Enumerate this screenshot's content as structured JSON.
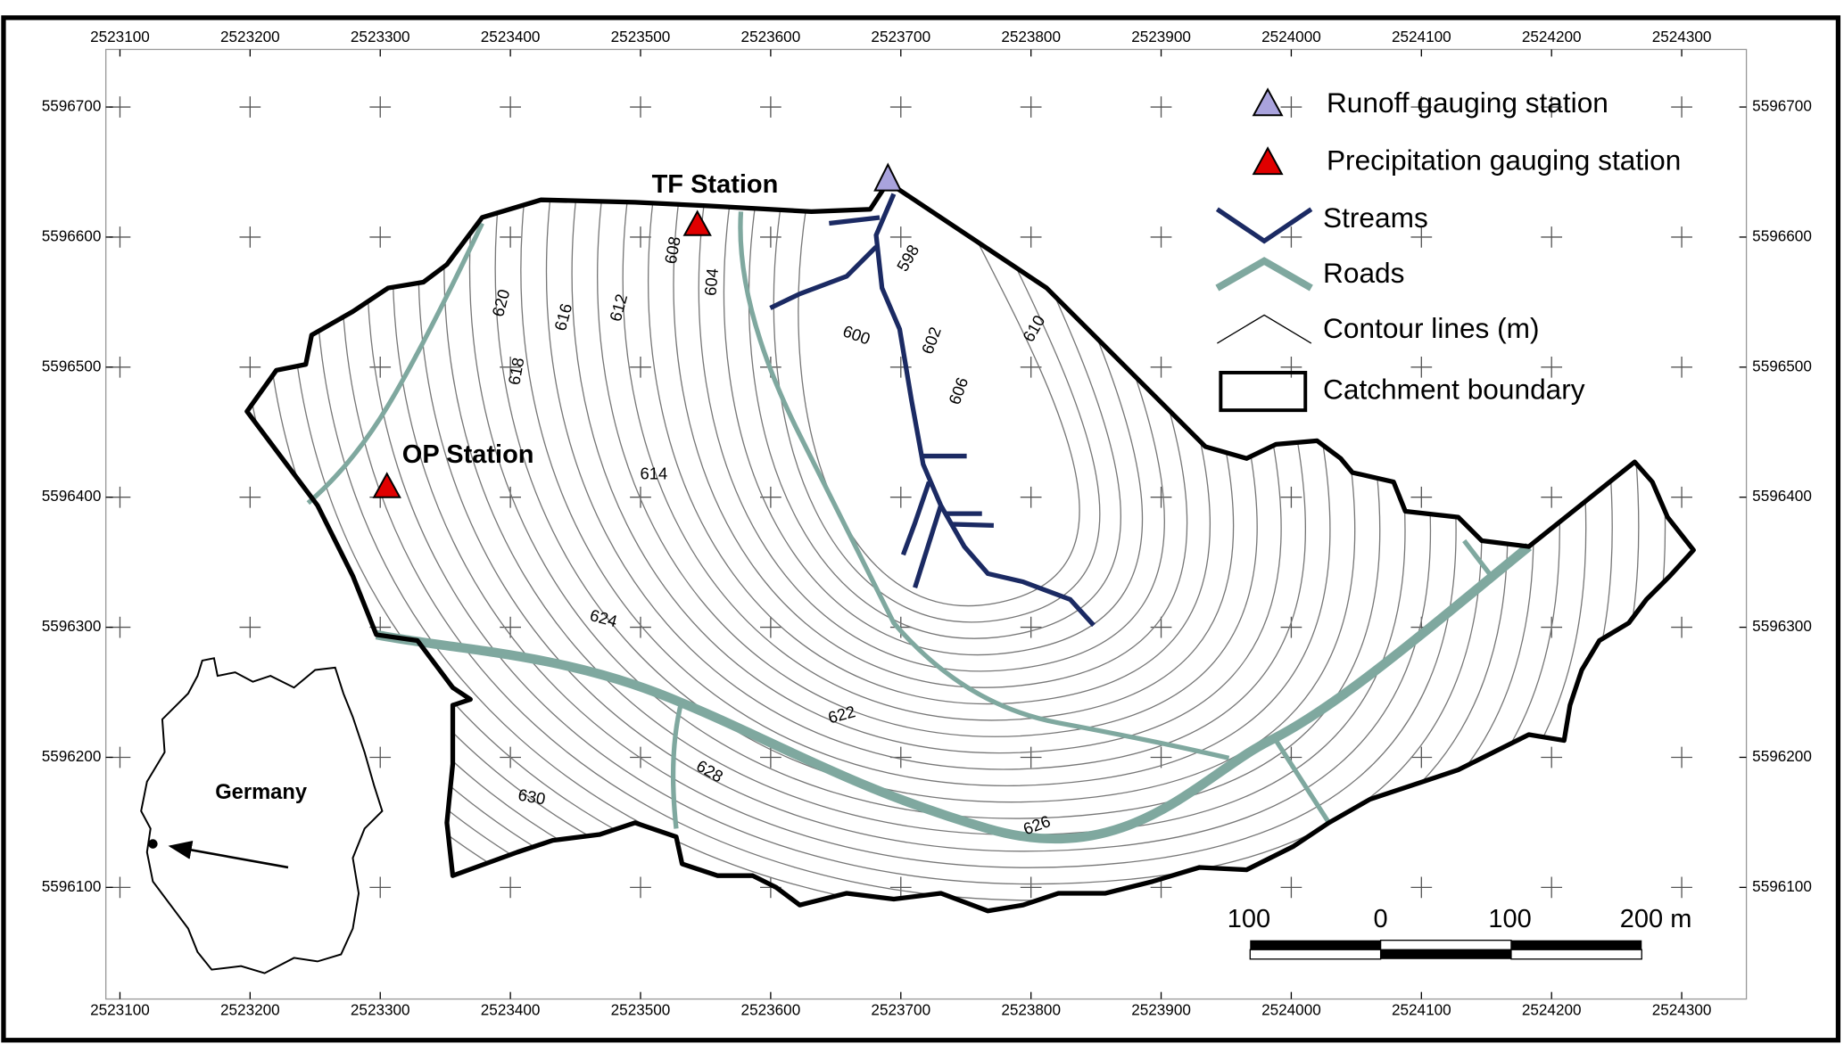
{
  "map": {
    "x_ticks": [
      2523100,
      2523200,
      2523300,
      2523400,
      2523500,
      2523600,
      2523700,
      2523800,
      2523900,
      2524000,
      2524100,
      2524200,
      2524300
    ],
    "y_ticks": [
      5596700,
      5596600,
      5596500,
      5596400,
      5596300,
      5596200,
      5596100
    ],
    "legend": [
      "Runoff gauging station",
      "Precipitation gauging station",
      "Streams",
      "Roads",
      "Contour lines (m)",
      "Catchment boundary"
    ],
    "stations": [
      "TF Station",
      "OP Station"
    ],
    "contour_labels": [
      620,
      616,
      612,
      608,
      604,
      598,
      600,
      602,
      606,
      610,
      618,
      614,
      624,
      622,
      628,
      630,
      626
    ],
    "inset_label": "Germany",
    "scale_labels": [
      "100",
      "0",
      "100",
      "200 m"
    ]
  }
}
